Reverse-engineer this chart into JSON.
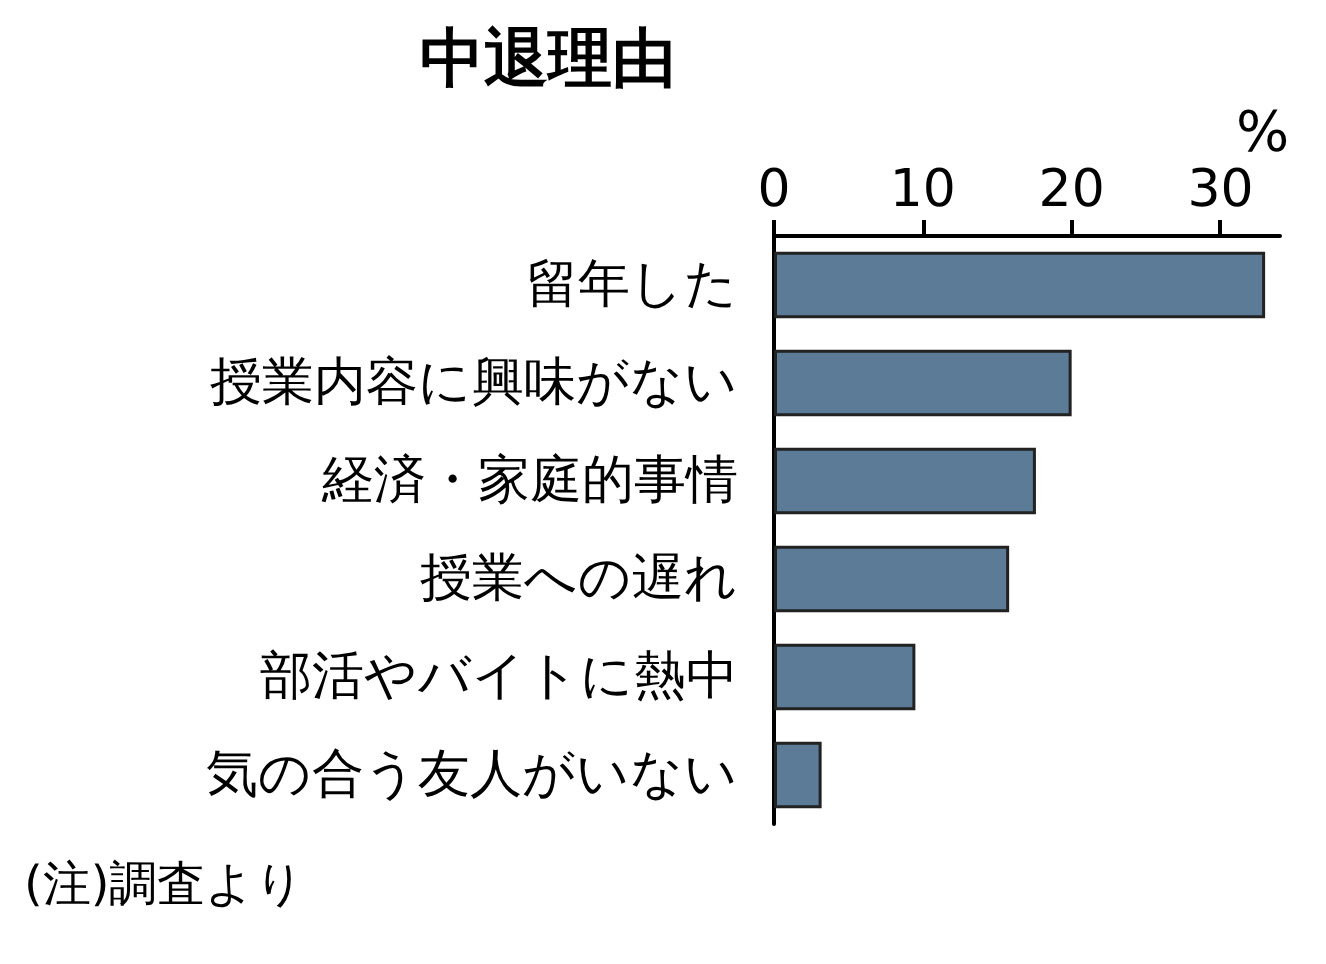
{
  "chart_data": {
    "type": "bar",
    "orientation": "horizontal",
    "title": "中退理由",
    "xlabel": "%",
    "categories": [
      "留年した",
      "授業内容に興味がない",
      "経済・家庭的事情",
      "授業への遅れ",
      "部活やバイトに熱中",
      "気の合う友人がいない"
    ],
    "values": [
      33,
      20,
      17.6,
      15.8,
      9.5,
      3.2
    ],
    "color": "#5b7b96",
    "xlim": [
      0,
      34
    ],
    "xticks": [
      0,
      10,
      20,
      30
    ],
    "grid": false,
    "annotations": [
      "(注)調査より"
    ]
  }
}
